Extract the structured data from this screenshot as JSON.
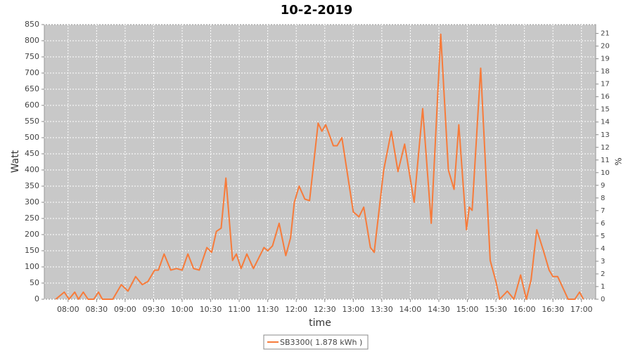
{
  "chart_data": {
    "type": "line",
    "title": "10-2-2019",
    "x_label": "time",
    "y_label": "Watt",
    "y2_label": "%",
    "x": [
      "07:47",
      "07:56",
      "08:01",
      "08:07",
      "08:11",
      "08:16",
      "08:21",
      "08:27",
      "08:32",
      "08:36",
      "08:47",
      "08:56",
      "09:03",
      "09:11",
      "09:18",
      "09:24",
      "09:31",
      "09:35",
      "09:41",
      "09:48",
      "09:54",
      "10:00",
      "10:06",
      "10:12",
      "10:18",
      "10:26",
      "10:31",
      "10:36",
      "10:41",
      "10:46",
      "10:53",
      "10:57",
      "11:02",
      "11:08",
      "11:15",
      "11:26",
      "11:30",
      "11:35",
      "11:42",
      "11:49",
      "11:54",
      "11:58",
      "12:03",
      "12:09",
      "12:14",
      "12:23",
      "12:27",
      "12:31",
      "12:39",
      "12:43",
      "12:48",
      "13:00",
      "13:06",
      "13:11",
      "13:18",
      "13:22",
      "13:32",
      "13:36",
      "13:40",
      "13:47",
      "13:54",
      "14:04",
      "14:13",
      "14:22",
      "14:32",
      "14:40",
      "14:46",
      "14:51",
      "14:59",
      "15:02",
      "15:05",
      "15:14",
      "15:24",
      "15:30",
      "15:34",
      "15:42",
      "15:49",
      "15:56",
      "16:02",
      "16:07",
      "16:13",
      "16:20",
      "16:26",
      "16:30",
      "16:35",
      "16:46",
      "16:53",
      "16:58",
      "17:02"
    ],
    "series": [
      {
        "name": "SB3300( 1.878 kWh )",
        "color": "#f77b3a",
        "values": [
          0,
          22,
          0,
          22,
          0,
          22,
          0,
          0,
          22,
          0,
          0,
          45,
          25,
          70,
          45,
          55,
          90,
          90,
          140,
          90,
          95,
          90,
          140,
          95,
          90,
          160,
          145,
          210,
          220,
          375,
          120,
          140,
          95,
          140,
          95,
          160,
          150,
          165,
          235,
          135,
          190,
          300,
          350,
          310,
          305,
          545,
          520,
          540,
          475,
          475,
          500,
          270,
          255,
          285,
          160,
          145,
          400,
          460,
          520,
          395,
          480,
          300,
          590,
          235,
          820,
          400,
          340,
          540,
          215,
          285,
          275,
          715,
          120,
          55,
          0,
          25,
          0,
          75,
          0,
          60,
          215,
          150,
          90,
          70,
          70,
          0,
          0,
          22,
          0
        ]
      }
    ],
    "xlim": [
      "07:35",
      "17:15"
    ],
    "xticks": [
      "08:00",
      "08:30",
      "09:00",
      "09:30",
      "10:00",
      "10:30",
      "11:00",
      "11:30",
      "12:00",
      "12:30",
      "13:00",
      "13:30",
      "14:00",
      "14:30",
      "15:00",
      "15:30",
      "16:00",
      "16:30",
      "17:00"
    ],
    "ylim": [
      0,
      850
    ],
    "yticks": [
      0,
      50,
      100,
      150,
      200,
      250,
      300,
      350,
      400,
      450,
      500,
      550,
      600,
      650,
      700,
      750,
      800,
      850
    ],
    "y2lim": [
      0,
      21.7
    ],
    "y2ticks": [
      0,
      1,
      2,
      3,
      4,
      5,
      6,
      7,
      8,
      9,
      10,
      11,
      12,
      13,
      14,
      15,
      16,
      17,
      18,
      19,
      20,
      21
    ],
    "grid": true
  }
}
